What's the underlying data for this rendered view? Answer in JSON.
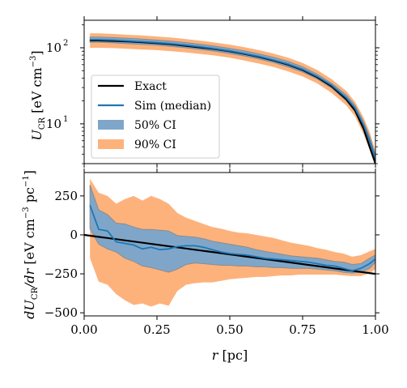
{
  "chart_data": [
    {
      "panel": "top",
      "type": "line",
      "xlim": [
        0.0,
        1.0
      ],
      "ylim": [
        3,
        230
      ],
      "yscale": "log",
      "ylabel_parts": [
        "U",
        "CR",
        " [eV cm",
        "−3",
        "]"
      ],
      "y_ticks": [
        {
          "value": 10,
          "base": "10",
          "exp": "1"
        },
        {
          "value": 100,
          "base": "10",
          "exp": "2"
        }
      ],
      "legend_position": "lower-left",
      "legend": [
        "Exact",
        "Sim (median)",
        "50% CI",
        "90% CI"
      ],
      "colors": {
        "exact": "#000000",
        "median": "#1f77b4",
        "ci50": "#7fa6c9",
        "ci90": "#fdb27c"
      },
      "x": [
        0.02,
        0.05,
        0.1,
        0.15,
        0.2,
        0.25,
        0.3,
        0.35,
        0.4,
        0.45,
        0.5,
        0.55,
        0.6,
        0.65,
        0.7,
        0.75,
        0.8,
        0.85,
        0.9,
        0.93,
        0.96,
        0.98,
        1.0
      ],
      "series": [
        {
          "name": "Exact",
          "values": [
            125,
            125,
            123,
            121,
            118,
            115,
            111,
            106,
            101,
            96,
            90,
            83,
            76,
            68,
            60,
            51,
            41,
            31,
            21,
            15,
            8.5,
            5,
            3
          ]
        },
        {
          "name": "Sim (median)",
          "values": [
            128,
            128,
            126,
            123,
            120,
            117,
            113,
            108,
            103,
            97,
            91,
            84,
            77,
            69,
            61,
            52,
            42,
            32,
            22,
            16,
            9.5,
            6,
            3.5
          ]
        },
        {
          "name": "50% CI",
          "lower": [
            118,
            118,
            116,
            113,
            111,
            108,
            104,
            100,
            95,
            90,
            84,
            78,
            71,
            64,
            56,
            48,
            39,
            29.5,
            20,
            14.5,
            8.5,
            5.3,
            3.2
          ],
          "upper": [
            138,
            138,
            136,
            133,
            130,
            126,
            122,
            117,
            111,
            105,
            98,
            91,
            83,
            75,
            66,
            56,
            45,
            34,
            24,
            17.5,
            10.5,
            6.8,
            3.9
          ]
        },
        {
          "name": "90% CI",
          "lower": [
            100,
            100,
            99,
            97,
            95,
            93,
            90,
            87,
            83,
            79,
            74,
            68,
            62,
            56,
            49,
            42,
            34,
            25.5,
            17.5,
            12.5,
            7.2,
            4.6,
            2.8
          ],
          "upper": [
            155,
            155,
            152,
            148,
            145,
            141,
            136,
            130,
            124,
            117,
            110,
            102,
            93,
            84,
            74,
            63,
            51,
            38.5,
            27,
            19.5,
            12,
            7.8,
            4.4
          ]
        }
      ]
    },
    {
      "panel": "bottom",
      "type": "line",
      "xlim": [
        0.0,
        1.0
      ],
      "ylim": [
        -520,
        400
      ],
      "xlabel_parts": [
        "r",
        " [pc]"
      ],
      "ylabel_parts": [
        "dU",
        "CR",
        "/dr",
        " [eV cm",
        "−3",
        " pc",
        "−1",
        "]"
      ],
      "x_ticks": [
        "0.00",
        "0.25",
        "0.50",
        "0.75",
        "1.00"
      ],
      "y_ticks": [
        "250",
        "0",
        "−250",
        "−500"
      ],
      "colors": {
        "exact": "#000000",
        "median": "#1f77b4",
        "ci50": "#7fa6c9",
        "ci90": "#fdb27c"
      },
      "x": [
        0.02,
        0.05,
        0.08,
        0.11,
        0.14,
        0.17,
        0.2,
        0.23,
        0.26,
        0.29,
        0.32,
        0.35,
        0.38,
        0.41,
        0.44,
        0.47,
        0.5,
        0.53,
        0.56,
        0.59,
        0.62,
        0.65,
        0.68,
        0.71,
        0.74,
        0.77,
        0.8,
        0.83,
        0.86,
        0.89,
        0.92,
        0.95,
        0.98,
        1.0
      ],
      "series": [
        {
          "name": "Exact",
          "x": [
            0.0,
            1.0
          ],
          "values": [
            0,
            -250
          ]
        },
        {
          "name": "Sim (median)",
          "values": [
            190,
            35,
            25,
            -45,
            -55,
            -65,
            -90,
            -80,
            -95,
            -90,
            -75,
            -70,
            -70,
            -80,
            -95,
            -110,
            -120,
            -125,
            -130,
            -140,
            -150,
            -155,
            -160,
            -165,
            -170,
            -175,
            -185,
            -195,
            -200,
            -215,
            -230,
            -215,
            -185,
            -155
          ]
        },
        {
          "name": "50% CI",
          "lower": [
            40,
            -60,
            -90,
            -110,
            -150,
            -170,
            -200,
            -210,
            -225,
            -240,
            -220,
            -190,
            -180,
            -185,
            -190,
            -195,
            -195,
            -200,
            -200,
            -205,
            -205,
            -210,
            -210,
            -215,
            -215,
            -215,
            -220,
            -225,
            -230,
            -240,
            -245,
            -240,
            -215,
            -175
          ],
          "upper": [
            320,
            160,
            130,
            75,
            70,
            50,
            35,
            35,
            30,
            25,
            -5,
            -10,
            -15,
            -25,
            -40,
            -50,
            -60,
            -70,
            -80,
            -95,
            -105,
            -115,
            -125,
            -135,
            -140,
            -145,
            -150,
            -160,
            -170,
            -175,
            -190,
            -185,
            -150,
            -130
          ]
        },
        {
          "name": "90% CI",
          "lower": [
            -150,
            -300,
            -320,
            -380,
            -420,
            -450,
            -440,
            -460,
            -440,
            -455,
            -360,
            -320,
            -310,
            -305,
            -305,
            -295,
            -285,
            -280,
            -275,
            -270,
            -270,
            -265,
            -260,
            -260,
            -255,
            -255,
            -255,
            -255,
            -255,
            -260,
            -265,
            -265,
            -245,
            -220
          ],
          "upper": [
            360,
            270,
            250,
            200,
            230,
            250,
            220,
            250,
            230,
            200,
            140,
            110,
            90,
            70,
            50,
            40,
            25,
            15,
            10,
            0,
            -10,
            -20,
            -35,
            -50,
            -60,
            -70,
            -85,
            -95,
            -110,
            -120,
            -140,
            -130,
            -105,
            -90
          ]
        }
      ]
    }
  ]
}
